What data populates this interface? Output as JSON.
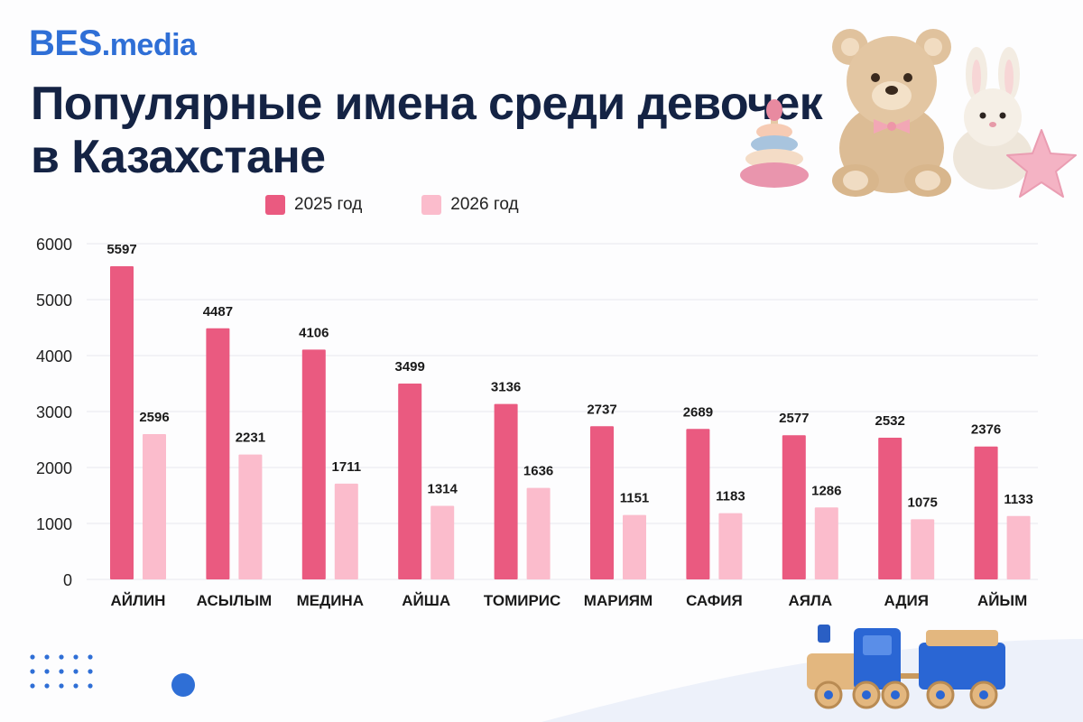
{
  "brand": {
    "part1": "BES",
    "part2": ".media"
  },
  "title_line1": "Популярные имена среди девочек",
  "title_line2": "в Казахстане",
  "colors": {
    "series_2025": "#ea5a80",
    "series_2026": "#fbbccc",
    "brand": "#2f6fd6",
    "title": "#142344"
  },
  "legend": [
    {
      "label": "2025 год"
    },
    {
      "label": "2026 год"
    }
  ],
  "chart_data": {
    "type": "bar",
    "categories": [
      "АЙЛИН",
      "АСЫЛЫМ",
      "МЕДИНА",
      "АЙША",
      "ТОМИРИС",
      "МАРИЯМ",
      "САФИЯ",
      "АЯЛА",
      "АДИЯ",
      "АЙЫМ"
    ],
    "series": [
      {
        "name": "2025 год",
        "values": [
          5597,
          4487,
          4106,
          3499,
          3136,
          2737,
          2689,
          2577,
          2532,
          2376
        ]
      },
      {
        "name": "2026 год",
        "values": [
          2596,
          2231,
          1711,
          1314,
          1636,
          1151,
          1183,
          1286,
          1075,
          1133
        ]
      }
    ],
    "yticks": [
      0,
      1000,
      2000,
      3000,
      4000,
      5000,
      6000
    ],
    "ylim": [
      0,
      6000
    ],
    "title": "",
    "xlabel": "",
    "ylabel": "",
    "grid": true,
    "legend_position": "top"
  },
  "decorations": [
    "teddy-bear-icon",
    "bunny-icon",
    "ring-stacker-icon",
    "star-toy-icon",
    "toy-train-icon"
  ]
}
